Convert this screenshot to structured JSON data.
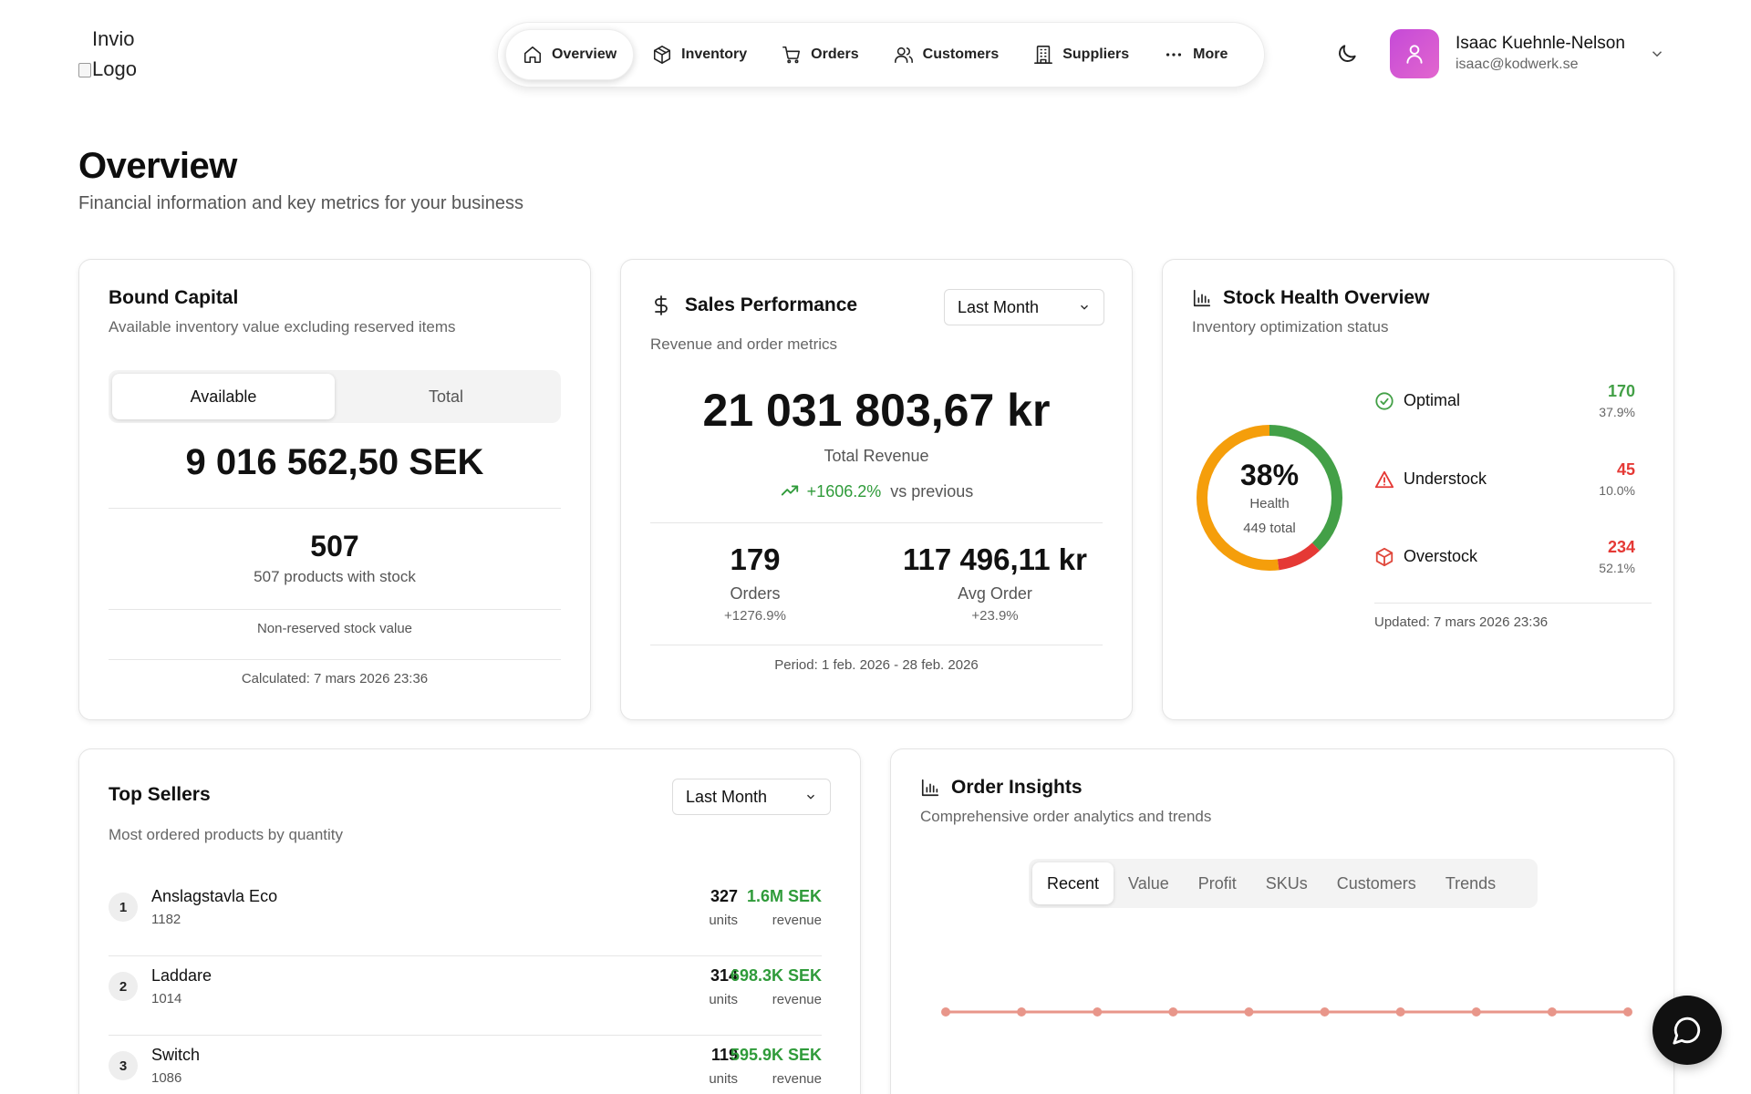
{
  "logo": {
    "alt_text": "Invio Logo"
  },
  "nav": {
    "items": [
      {
        "label": "Overview",
        "icon": "home-icon",
        "active": true
      },
      {
        "label": "Inventory",
        "icon": "box-icon",
        "active": false
      },
      {
        "label": "Orders",
        "icon": "cart-icon",
        "active": false
      },
      {
        "label": "Customers",
        "icon": "users-icon",
        "active": false
      },
      {
        "label": "Suppliers",
        "icon": "building-icon",
        "active": false
      },
      {
        "label": "More",
        "icon": "more-dots-icon",
        "active": false
      }
    ]
  },
  "user": {
    "name": "Isaac Kuehnle-Nelson",
    "email": "isaac@kodwerk.se",
    "avatar_icon": "user-icon",
    "avatar_color": "#d056d6"
  },
  "theme_toggle_icon": "moon-icon",
  "page": {
    "title": "Overview",
    "subtitle": "Financial information and key metrics for your business"
  },
  "bound_capital": {
    "title": "Bound Capital",
    "subtitle": "Available inventory value excluding reserved items",
    "toggle": {
      "options": [
        "Available",
        "Total"
      ],
      "selected": "Available"
    },
    "value": "9 016 562,50 SEK",
    "count": "507",
    "count_label": "507 products with stock",
    "note": "Non-reserved stock value",
    "calculated": "Calculated: 7 mars 2026 23:36"
  },
  "sales": {
    "title": "Sales Performance",
    "icon": "dollar-icon",
    "subtitle": "Revenue and order metrics",
    "period_select": "Last Month",
    "total_revenue": "21 031 803,67 kr",
    "total_revenue_label": "Total Revenue",
    "change": "+1606.2%",
    "change_suffix": "vs previous",
    "orders": "179",
    "orders_label": "Orders",
    "orders_change": "+1276.9%",
    "avg_order": "117 496,11 kr",
    "avg_order_label": "Avg Order",
    "avg_order_change": "+23.9%",
    "period": "Period: 1 feb. 2026 - 28 feb. 2026",
    "positive_color": "#2f9b3a"
  },
  "stock_health": {
    "title": "Stock Health Overview",
    "icon": "bar-chart-icon",
    "subtitle": "Inventory optimization status",
    "health_percent": 38,
    "health_label": "38%",
    "health_caption": "Health",
    "total_caption": "449 total",
    "segments": [
      {
        "label": "Optimal",
        "value": "170",
        "percent": "37.9%",
        "fraction": 0.379,
        "color": "#43a047",
        "icon": "check-circle-icon"
      },
      {
        "label": "Understock",
        "value": "45",
        "percent": "10.0%",
        "fraction": 0.1,
        "color": "#e53935",
        "icon": "warning-triangle-icon"
      },
      {
        "label": "Overstock",
        "value": "234",
        "percent": "52.1%",
        "fraction": 0.521,
        "color": "#f59e0b",
        "icon": "package-icon"
      }
    ],
    "updated": "Updated: 7 mars 2026 23:36"
  },
  "top_sellers": {
    "title": "Top Sellers",
    "subtitle": "Most ordered products by quantity",
    "period_select": "Last Month",
    "units_label": "units",
    "revenue_label": "revenue",
    "items": [
      {
        "rank": "1",
        "name": "Anslagstavla Eco",
        "code": "1182",
        "units": "327",
        "revenue": "1.6M SEK"
      },
      {
        "rank": "2",
        "name": "Laddare",
        "code": "1014",
        "units": "314",
        "revenue": "698.3K SEK"
      },
      {
        "rank": "3",
        "name": "Switch",
        "code": "1086",
        "units": "119",
        "revenue": "595.9K SEK"
      }
    ]
  },
  "order_insights": {
    "title": "Order Insights",
    "icon": "bar-chart-icon",
    "subtitle": "Comprehensive order analytics and trends",
    "tabs": [
      "Recent",
      "Value",
      "Profit",
      "SKUs",
      "Customers",
      "Trends"
    ],
    "active_tab": "Recent",
    "line_color": "#e8968a"
  },
  "chat_button_icon": "chat-bubble-icon"
}
